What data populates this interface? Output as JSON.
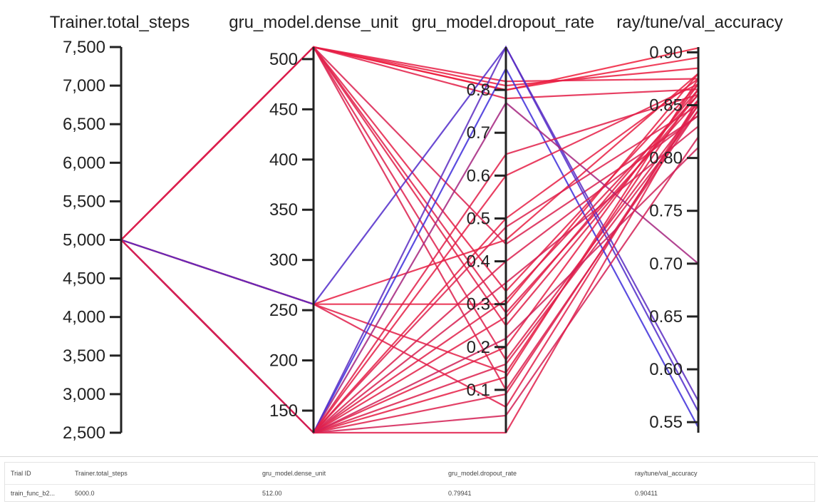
{
  "chart_data": {
    "type": "parallel_coordinates",
    "axes": [
      {
        "name": "Trainer.total_steps",
        "range": [
          2500,
          7500
        ],
        "ticks": [
          2500,
          3000,
          3500,
          4000,
          4500,
          5000,
          5500,
          6000,
          6500,
          7000,
          7500
        ],
        "tick_labels": [
          "2,500",
          "3,000",
          "3,500",
          "4,000",
          "4,500",
          "5,000",
          "5,500",
          "6,000",
          "6,500",
          "7,000",
          "7,500"
        ]
      },
      {
        "name": "gru_model.dense_unit",
        "range": [
          128,
          512
        ],
        "ticks": [
          150,
          200,
          250,
          300,
          350,
          400,
          450,
          500
        ],
        "tick_labels": [
          "150",
          "200",
          "250",
          "300",
          "350",
          "400",
          "450",
          "500"
        ]
      },
      {
        "name": "gru_model.dropout_rate",
        "range": [
          0.0,
          0.9
        ],
        "ticks": [
          0.1,
          0.2,
          0.3,
          0.4,
          0.5,
          0.6,
          0.7,
          0.8
        ],
        "tick_labels": [
          "0.1",
          "0.2",
          "0.3",
          "0.4",
          "0.5",
          "0.6",
          "0.7",
          "0.8"
        ]
      },
      {
        "name": "ray/tune/val_accuracy",
        "range": [
          0.54,
          0.905
        ],
        "ticks": [
          0.55,
          0.6,
          0.65,
          0.7,
          0.75,
          0.8,
          0.85,
          0.9
        ],
        "tick_labels": [
          "0.55",
          "0.60",
          "0.65",
          "0.70",
          "0.75",
          "0.80",
          "0.85",
          "0.90"
        ]
      }
    ],
    "color_scale": {
      "low": "#2f2fe8",
      "high": "#f01e3c",
      "metric": "ray/tune/val_accuracy"
    },
    "trials": [
      [
        5000,
        512,
        0.79941,
        0.90411
      ],
      [
        5000,
        512,
        0.8,
        0.895
      ],
      [
        5000,
        512,
        0.81,
        0.885
      ],
      [
        5000,
        512,
        0.82,
        0.875
      ],
      [
        5000,
        512,
        0.78,
        0.865
      ],
      [
        5000,
        512,
        0.33,
        0.87
      ],
      [
        5000,
        512,
        0.28,
        0.855
      ],
      [
        5000,
        512,
        0.25,
        0.86
      ],
      [
        5000,
        512,
        0.1,
        0.845
      ],
      [
        5000,
        512,
        0.17,
        0.85
      ],
      [
        5000,
        512,
        0.44,
        0.84
      ],
      [
        5000,
        256,
        0.3,
        0.88
      ],
      [
        5000,
        256,
        0.14,
        0.865
      ],
      [
        5000,
        256,
        0.45,
        0.88
      ],
      [
        5000,
        256,
        0.06,
        0.855
      ],
      [
        5000,
        256,
        0.9,
        0.56
      ],
      [
        5000,
        128,
        0.9,
        0.57
      ],
      [
        5000,
        128,
        0.85,
        0.545
      ],
      [
        5000,
        128,
        0.77,
        0.7
      ],
      [
        5000,
        128,
        0.6,
        0.87
      ],
      [
        5000,
        128,
        0.65,
        0.86
      ],
      [
        5000,
        128,
        0.5,
        0.875
      ],
      [
        5000,
        128,
        0.48,
        0.85
      ],
      [
        5000,
        128,
        0.4,
        0.84
      ],
      [
        5000,
        128,
        0.35,
        0.83
      ],
      [
        5000,
        128,
        0.31,
        0.86
      ],
      [
        5000,
        128,
        0.27,
        0.865
      ],
      [
        5000,
        128,
        0.2,
        0.87
      ],
      [
        5000,
        128,
        0.13,
        0.875
      ],
      [
        5000,
        128,
        0.09,
        0.85
      ],
      [
        5000,
        128,
        0.04,
        0.82
      ],
      [
        5000,
        128,
        0.0,
        0.855
      ],
      [
        5000,
        128,
        0.16,
        0.845
      ],
      [
        5000,
        128,
        0.22,
        0.81
      ]
    ]
  },
  "table": {
    "headers": [
      "Trial ID",
      "Trainer.total_steps",
      "gru_model.dense_unit",
      "gru_model.dropout_rate",
      "ray/tune/val_accuracy"
    ],
    "rows": [
      [
        "train_func_b2...",
        "5000.0",
        "512.00",
        "0.79941",
        "0.90411"
      ]
    ]
  }
}
